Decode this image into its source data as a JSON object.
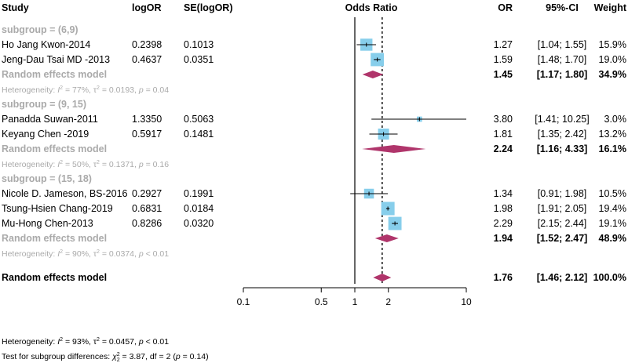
{
  "chart_data": {
    "type": "forest",
    "title": "Odds Ratio",
    "xscale": "log",
    "xlim": [
      0.1,
      10
    ],
    "xticks": [
      "0.1",
      "0.5",
      "1",
      "2",
      "10"
    ],
    "xtick_values": [
      0.1,
      0.5,
      1,
      2,
      10
    ],
    "reference_line": 1,
    "overall_line": 1.76,
    "columns": {
      "study": "Study",
      "logor": "logOR",
      "se": "SE(logOR)",
      "or": "OR",
      "ci": "95%-CI",
      "weight": "Weight"
    },
    "subgroups": [
      {
        "label": "subgroup = (6,9)",
        "studies": [
          {
            "name": "Ho Jang Kwon-2014",
            "logor": "0.2398",
            "se": "0.1013",
            "or_text": "1.27",
            "ci_text": "[1.04; 1.55]",
            "weight_text": "15.9%",
            "or": 1.27,
            "lo": 1.04,
            "hi": 1.55,
            "weight": 15.9
          },
          {
            "name": "Jeng-Dau Tsai MD -2013",
            "logor": "0.4637",
            "se": "0.0351",
            "or_text": "1.59",
            "ci_text": "[1.48; 1.70]",
            "weight_text": "19.0%",
            "or": 1.59,
            "lo": 1.48,
            "hi": 1.7,
            "weight": 19.0
          }
        ],
        "summary": {
          "label": "Random effects model",
          "or_text": "1.45",
          "ci_text": "[1.17; 1.80]",
          "weight_text": "34.9%",
          "or": 1.45,
          "lo": 1.17,
          "hi": 1.8
        },
        "heterogeneity": {
          "prefix": "Heterogeneity: ",
          "i2": "I",
          "i2_val": " = 77%, ",
          "tau": "τ",
          "tau_val": " = 0.0193, ",
          "p": "p",
          "p_val": " = 0.04"
        }
      },
      {
        "label": "subgroup = (9, 15)",
        "studies": [
          {
            "name": "Panadda Suwan-2011",
            "logor": "1.3350",
            "se": "0.5063",
            "or_text": "3.80",
            "ci_text": "[1.41; 10.25]",
            "weight_text": "3.0%",
            "or": 3.8,
            "lo": 1.41,
            "hi": 10.25,
            "weight": 3.0
          },
          {
            "name": "Keyang Chen -2019",
            "logor": "0.5917",
            "se": "0.1481",
            "or_text": "1.81",
            "ci_text": "[1.35; 2.42]",
            "weight_text": "13.2%",
            "or": 1.81,
            "lo": 1.35,
            "hi": 2.42,
            "weight": 13.2
          }
        ],
        "summary": {
          "label": "Random effects model",
          "or_text": "2.24",
          "ci_text": "[1.16; 4.33]",
          "weight_text": "16.1%",
          "or": 2.24,
          "lo": 1.16,
          "hi": 4.33
        },
        "heterogeneity": {
          "prefix": "Heterogeneity: ",
          "i2": "I",
          "i2_val": " = 50%, ",
          "tau": "τ",
          "tau_val": " = 0.1371, ",
          "p": "p",
          "p_val": " = 0.16"
        }
      },
      {
        "label": "subgroup = (15, 18)",
        "studies": [
          {
            "name": "Nicole D. Jameson, BS-2016",
            "logor": "0.2927",
            "se": "0.1991",
            "or_text": "1.34",
            "ci_text": "[0.91; 1.98]",
            "weight_text": "10.5%",
            "or": 1.34,
            "lo": 0.91,
            "hi": 1.98,
            "weight": 10.5
          },
          {
            "name": "Tsung-Hsien Chang-2019",
            "logor": "0.6831",
            "se": "0.0184",
            "or_text": "1.98",
            "ci_text": "[1.91; 2.05]",
            "weight_text": "19.4%",
            "or": 1.98,
            "lo": 1.91,
            "hi": 2.05,
            "weight": 19.4
          },
          {
            "name": "Mu-Hong Chen-2013",
            "logor": "0.8286",
            "se": "0.0320",
            "or_text": "2.29",
            "ci_text": "[2.15; 2.44]",
            "weight_text": "19.1%",
            "or": 2.29,
            "lo": 2.15,
            "hi": 2.44,
            "weight": 19.1
          }
        ],
        "summary": {
          "label": "Random effects model",
          "or_text": "1.94",
          "ci_text": "[1.52; 2.47]",
          "weight_text": "48.9%",
          "or": 1.94,
          "lo": 1.52,
          "hi": 2.47
        },
        "heterogeneity": {
          "prefix": "Heterogeneity: ",
          "i2": "I",
          "i2_val": " = 90%, ",
          "tau": "τ",
          "tau_val": " = 0.0374, ",
          "p": "p",
          "p_val": " < 0.01"
        }
      }
    ],
    "overall": {
      "label": "Random effects model",
      "or_text": "1.76",
      "ci_text": "[1.46; 2.12]",
      "weight_text": "100.0%",
      "or": 1.76,
      "lo": 1.46,
      "hi": 2.12
    },
    "footer": {
      "heterogeneity": {
        "prefix": "Heterogeneity: ",
        "i2": "I",
        "i2_val": " = 93%, ",
        "tau": "τ",
        "tau_val": " = 0.0457, ",
        "p": "p",
        "p_val": " < 0.01"
      },
      "subgroup_test": {
        "prefix": "Test for subgroup differences: ",
        "chi": "χ",
        "chi_sub": "2",
        "chi_val": " = 3.87, df = 2 (",
        "p": "p",
        "p_val": " = 0.14)"
      }
    },
    "colors": {
      "square": "#87ceeb",
      "diamond": "#b0356b",
      "gray_text": "#aaaaaa"
    }
  }
}
